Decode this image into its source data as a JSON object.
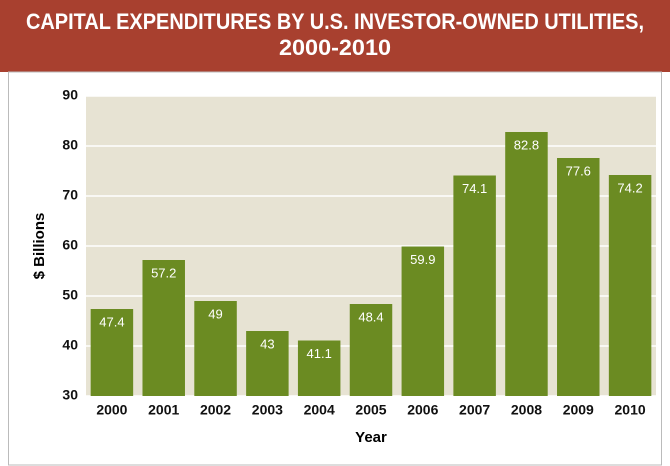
{
  "chart_data": {
    "type": "bar",
    "title": [
      "CAPITAL EXPENDITURES BY U.S. INVESTOR-OWNED UTILITIES,",
      "2000-2010"
    ],
    "x_label": "Year",
    "y_label": "$ Billions",
    "categories": [
      "2000",
      "2001",
      "2002",
      "2003",
      "2004",
      "2005",
      "2006",
      "2007",
      "2008",
      "2009",
      "2010"
    ],
    "values": [
      47.4,
      57.2,
      49,
      43,
      41.1,
      48.4,
      59.9,
      74.1,
      82.8,
      77.6,
      74.2
    ],
    "color": "#6b8b22",
    "ylim": [
      30,
      90
    ],
    "yticks": [
      30,
      40,
      50,
      60,
      70,
      80,
      90
    ],
    "grid": true
  }
}
